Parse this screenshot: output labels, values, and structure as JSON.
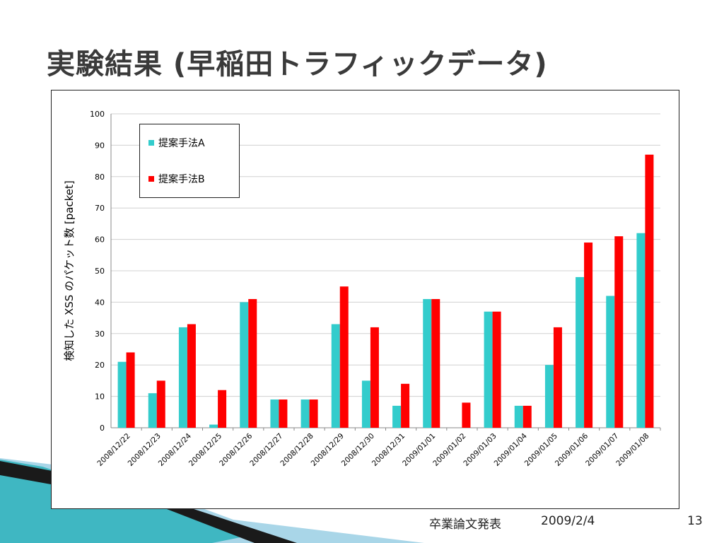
{
  "slide": {
    "title": "実験結果 (早稲田トラフィックデータ)",
    "footer_text": "卒業論文発表",
    "footer_date": "2009/2/4",
    "page_number": "13",
    "accent_colors": {
      "teal": "#3fb7c2",
      "dark": "#1a1a1a",
      "light_blue": "#a9d6e8"
    }
  },
  "chart_data": {
    "type": "bar",
    "title": "",
    "xlabel": "",
    "ylabel": "検知した XSS のパケット数 [packet]",
    "ylim": [
      0,
      100
    ],
    "yticks": [
      0,
      10,
      20,
      30,
      40,
      50,
      60,
      70,
      80,
      90,
      100
    ],
    "grid": true,
    "legend_position": "top-left",
    "categories": [
      "2008/12/22",
      "2008/12/23",
      "2008/12/24",
      "2008/12/25",
      "2008/12/26",
      "2008/12/27",
      "2008/12/28",
      "2008/12/29",
      "2008/12/30",
      "2008/12/31",
      "2009/01/01",
      "2009/01/02",
      "2009/01/03",
      "2009/01/04",
      "2009/01/05",
      "2009/01/06",
      "2009/01/07",
      "2009/01/08"
    ],
    "series": [
      {
        "name": "提案手法A",
        "color": "#33cccc",
        "values": [
          21,
          11,
          32,
          1,
          40,
          9,
          9,
          33,
          15,
          7,
          41,
          0,
          37,
          7,
          20,
          48,
          42,
          62
        ]
      },
      {
        "name": "提案手法B",
        "color": "#ff0000",
        "values": [
          24,
          15,
          33,
          12,
          41,
          9,
          9,
          45,
          32,
          14,
          41,
          8,
          37,
          7,
          32,
          59,
          61,
          87
        ]
      }
    ]
  }
}
